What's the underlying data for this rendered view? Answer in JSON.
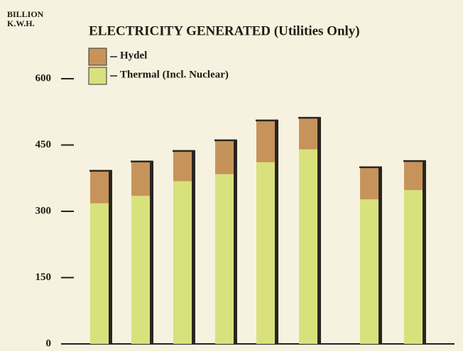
{
  "chart_data": {
    "type": "stacked_bar",
    "title": "ELECTRICITY GENERATED (Utilities Only)",
    "ylabel": [
      "BILLION",
      "K.W.H."
    ],
    "categories": [
      null,
      null,
      null,
      null,
      null,
      null,
      null,
      null
    ],
    "series": [
      {
        "name": "Thermal (Incl. Nuclear)",
        "color": "#d9e17c",
        "values": [
          318,
          335,
          368,
          384,
          411,
          440,
          327,
          348
        ]
      },
      {
        "name": "Hydel",
        "color": "#c6945a",
        "values": [
          72,
          76,
          67,
          75,
          93,
          70,
          71,
          64
        ]
      }
    ],
    "ylim": [
      0,
      600
    ],
    "yticks": [
      0,
      150,
      300,
      450,
      600
    ],
    "legend": "top-left"
  }
}
